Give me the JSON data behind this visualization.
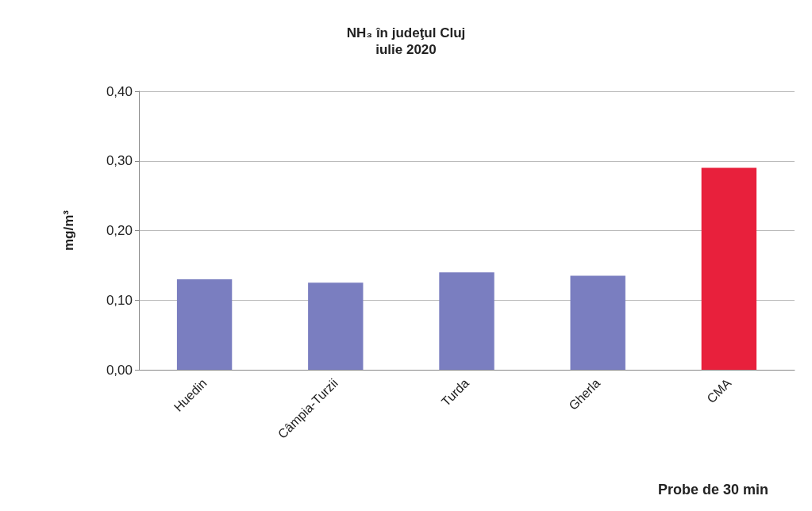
{
  "chart_data": {
    "type": "bar",
    "title": "NH₃ în judeţul Cluj",
    "subtitle": "iulie 2020",
    "xlabel": "Probe de 30 min",
    "ylabel": "mg/m³",
    "categories": [
      "Huedin",
      "Câmpia-Turzii",
      "Turda",
      "Gherla",
      "CMA"
    ],
    "values": [
      0.13,
      0.125,
      0.14,
      0.135,
      0.29
    ],
    "colors": [
      "#7a7ec0",
      "#7a7ec0",
      "#7a7ec0",
      "#7a7ec0",
      "#e8203c"
    ],
    "ylim": [
      0,
      0.4
    ],
    "yticks": [
      {
        "value": 0,
        "label": "0,00"
      },
      {
        "value": 0.1,
        "label": "0,10"
      },
      {
        "value": 0.2,
        "label": "0,20"
      },
      {
        "value": 0.3,
        "label": "0,30"
      },
      {
        "value": 0.4,
        "label": "0,40"
      }
    ],
    "grid": "y"
  }
}
